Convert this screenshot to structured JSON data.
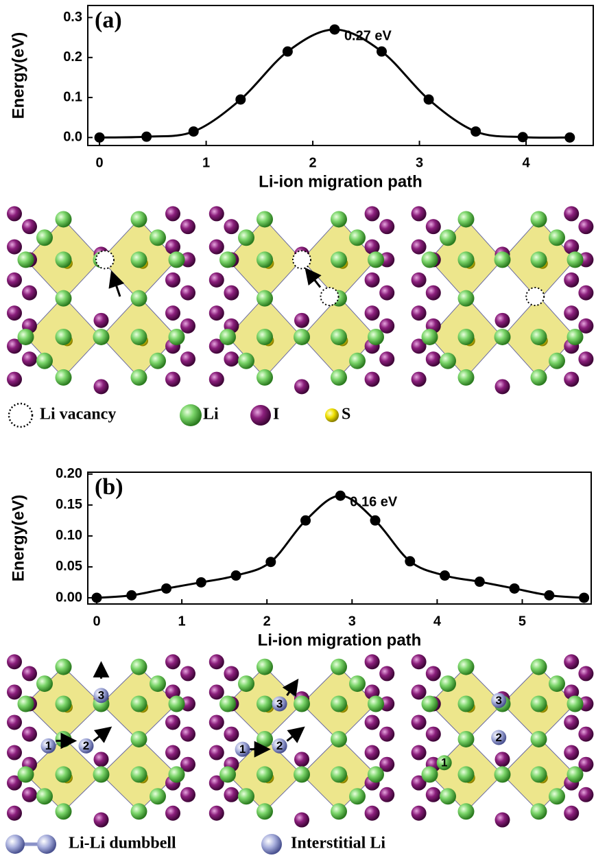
{
  "chart_data": [
    {
      "type": "line",
      "panel_label": "(a)",
      "annotation": "0.27 eV",
      "xlabel": "Li-ion migration path",
      "ylabel": "Energy(eV)",
      "color": "#000000",
      "x": [
        0,
        0.441,
        0.882,
        1.323,
        1.764,
        2.205,
        2.646,
        3.087,
        3.528,
        3.969,
        4.41
      ],
      "values": [
        0,
        0.002,
        0.015,
        0.095,
        0.215,
        0.27,
        0.215,
        0.095,
        0.015,
        0.001,
        0
      ],
      "xlim": [
        -0.11,
        4.63
      ],
      "ylim": [
        -0.02,
        0.33
      ],
      "xticks": [
        0,
        1,
        2,
        3,
        4
      ],
      "yticks": [
        {
          "value": 0,
          "label": "0.0"
        },
        {
          "value": 0.1,
          "label": "0.1"
        },
        {
          "value": 0.2,
          "label": "0.2"
        },
        {
          "value": 0.3,
          "label": "0.3"
        }
      ]
    },
    {
      "type": "line",
      "panel_label": "(b)",
      "annotation": "0.16 eV",
      "xlabel": "Li-ion migration path",
      "ylabel": "Energy(eV)",
      "color": "#000000",
      "x": [
        0,
        0.409,
        0.818,
        1.227,
        1.636,
        2.045,
        2.454,
        2.863,
        3.272,
        3.681,
        4.09,
        4.499,
        4.908,
        5.317,
        5.726
      ],
      "values": [
        0,
        0.004,
        0.015,
        0.025,
        0.036,
        0.058,
        0.125,
        0.165,
        0.125,
        0.059,
        0.036,
        0.026,
        0.015,
        0.004,
        0
      ],
      "xlim": [
        -0.105,
        5.81
      ],
      "ylim": [
        -0.01,
        0.203
      ],
      "xticks": [
        0,
        1,
        2,
        3,
        4,
        5
      ],
      "yticks": [
        {
          "value": 0,
          "label": "0.00"
        },
        {
          "value": 0.05,
          "label": "0.05"
        },
        {
          "value": 0.1,
          "label": "0.10"
        },
        {
          "value": 0.15,
          "label": "0.15"
        },
        {
          "value": 0.2,
          "label": "0.20"
        }
      ]
    }
  ],
  "legend_a": [
    "Li  vacancy",
    "Li",
    "I",
    "S"
  ],
  "legend_b": [
    "Li-Li dumbbell",
    "Interstitial Li"
  ],
  "site_labels": [
    "1",
    "2",
    "3"
  ]
}
